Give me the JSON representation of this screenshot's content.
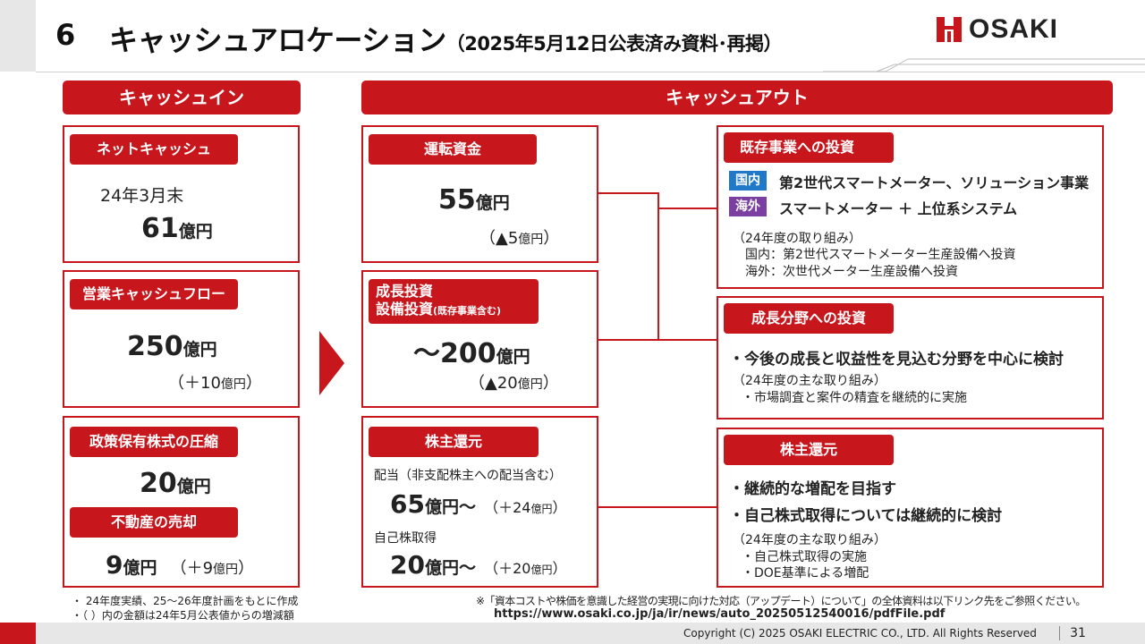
{
  "header": {
    "number": "6",
    "title": "キャッシュアロケーション",
    "title_sub": "（2025年5月12日公表済み資料･再掲）",
    "logo_text": "OSAKI"
  },
  "cash_in": {
    "heading": "キャッシュイン",
    "net_cash": {
      "label": "ネットキャッシュ",
      "period": "24年3月末",
      "value": "61",
      "unit": "億円"
    },
    "op_cf": {
      "label": "営業キャッシュフロー",
      "value": "250",
      "unit": "億円",
      "diff_open": "（＋10",
      "diff_unit": "億円",
      "diff_close": "）"
    },
    "stock_reduction": {
      "label": "政策保有株式の圧縮",
      "value": "20",
      "unit": "億円"
    },
    "real_estate": {
      "label": "不動産の売却",
      "value": "9",
      "unit": "億円",
      "diff_open": "（＋9",
      "diff_unit": "億円",
      "diff_close": "）"
    }
  },
  "cash_out": {
    "heading": "キャッシュアウト",
    "working_capital": {
      "label": "運転資金",
      "value": "55",
      "unit": "億円",
      "diff_open": "（▲5",
      "diff_unit": "億円",
      "diff_close": "）"
    },
    "growth_invest": {
      "label1": "成長投資",
      "label2": "設備投資",
      "label2_small": "(既存事業含む)",
      "value": "～200",
      "unit": "億円",
      "diff_open": "（▲20",
      "diff_unit": "億円",
      "diff_close": "）"
    },
    "returns": {
      "label": "株主還元",
      "dividend_label": "配当（非支配株主への配当含む）",
      "dividend_value": "65",
      "dividend_unit": "億円～",
      "dividend_diff_open": "（＋24",
      "dividend_diff_unit": "億円",
      "dividend_diff_close": "）",
      "buyback_label": "自己株取得",
      "buyback_value": "20",
      "buyback_unit": "億円～",
      "buyback_diff_open": "（＋20",
      "buyback_diff_unit": "億円",
      "buyback_diff_close": "）"
    }
  },
  "right": {
    "existing": {
      "label": "既存事業への投資",
      "domestic_badge": "国内",
      "domestic_text": "第2世代スマートメーター、ソリューション事業",
      "overseas_badge": "海外",
      "overseas_text": "スマートメーター ＋ 上位系システム",
      "note_title": "（24年度の取り組み）",
      "note1": "国内：第2世代スマートメーター生産設備へ投資",
      "note2": "海外：次世代メーター生産設備へ投資"
    },
    "growth": {
      "label": "成長分野への投資",
      "bullet": "・今後の成長と収益性を見込む分野を中心に検討",
      "note_title": "（24年度の主な取り組み）",
      "note1": "・市場調査と案件の精査を継続的に実施"
    },
    "returns": {
      "label": "株主還元",
      "bullet1": "・継続的な増配を目指す",
      "bullet2": "・自己株式取得については継続的に検討",
      "note_title": "（24年度の主な取り組み）",
      "note1": "・自己株式取得の実施",
      "note2": "・DOE基準による増配"
    }
  },
  "footnotes": {
    "left1": "・ 24年度実績、25～26年度計画をもとに作成",
    "left2": "・（ ）内の金額は24年5月公表値からの増減額",
    "right1": "※「資本コストや株価を意識した経営の実現に向けた対応（アップデート）について」の全体資料は以下リンク先をご参照ください。",
    "right2": "https://www.osaki.co.jp/ja/ir/news/auto_20250512540016/pdfFile.pdf"
  },
  "footer": {
    "copyright": "Copyright (C) 2025 OSAKI ELECTRIC CO., LTD. All Rights Reserved",
    "page": "31"
  },
  "colors": {
    "accent": "#c8161d",
    "domestic_badge": "#1f78c8",
    "overseas_badge": "#7a3fa0",
    "gray_band": "#e7e7e7"
  }
}
